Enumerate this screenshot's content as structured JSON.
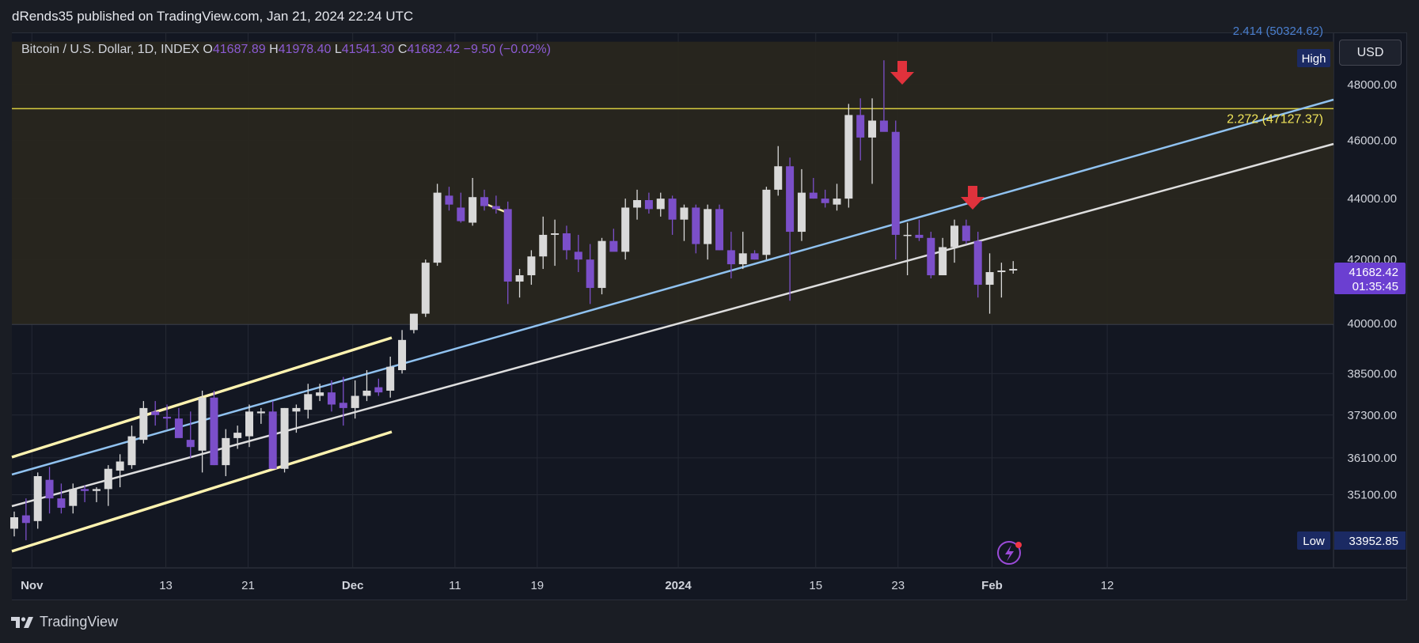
{
  "header": {
    "published_text": "dRends35 published on TradingView.com, Jan 21, 2024 22:24 UTC"
  },
  "legend": {
    "symbol": "Bitcoin / U.S. Dollar, 1D, INDEX",
    "o_label": "O",
    "o": "41687.89",
    "h_label": "H",
    "h": "41978.40",
    "l_label": "L",
    "l": "41541.30",
    "c_label": "C",
    "c": "41682.42",
    "change": "−9.50 (−0.02%)"
  },
  "toolbar": {
    "currency": "USD"
  },
  "footer": {
    "brand": "TradingView"
  },
  "colors": {
    "bg": "#131722",
    "up": "#d9d9d9",
    "down": "#7b4fc9",
    "channel": "#fff3b0",
    "blue": "#90c2f0",
    "white": "#dedede",
    "fib": "#f0e45a",
    "arrow": "#e0323c",
    "zone": "#2a2820"
  },
  "chart_data": {
    "type": "candlestick",
    "title": "Bitcoin / U.S. Dollar, 1D, INDEX",
    "x_ticks": [
      "Nov",
      "13",
      "21",
      "Dec",
      "11",
      "19",
      "2024",
      "15",
      "23",
      "Feb",
      "12"
    ],
    "y_ticks": [
      "48000.00",
      "46000.00",
      "44000.00",
      "42000.00",
      "40000.00",
      "38500.00",
      "37300.00",
      "36100.00",
      "35100.00"
    ],
    "price_label": {
      "price": "41682.42",
      "countdown": "01:35:45"
    },
    "high_label": {
      "tag": "High",
      "value": ""
    },
    "low_label": {
      "tag": "Low",
      "value": "33952.85"
    },
    "fib_label": "2.272 (47127.37)",
    "top_cut_label": "2.414 (50324.62)",
    "candles": [
      [
        34200,
        34650,
        34000,
        34500
      ],
      [
        34550,
        35000,
        33900,
        34350
      ],
      [
        34400,
        35700,
        34200,
        35600
      ],
      [
        35500,
        35850,
        34600,
        35000
      ],
      [
        35000,
        35400,
        34600,
        34750
      ],
      [
        34800,
        35400,
        34600,
        35250
      ],
      [
        35250,
        35350,
        34900,
        35200
      ],
      [
        35200,
        35300,
        34900,
        35250
      ],
      [
        35250,
        35900,
        34800,
        35800
      ],
      [
        35750,
        36200,
        35300,
        36000
      ],
      [
        35900,
        37000,
        35800,
        36700
      ],
      [
        36600,
        37700,
        36500,
        37500
      ],
      [
        37400,
        37700,
        37000,
        37300
      ],
      [
        37250,
        37600,
        36900,
        37200
      ],
      [
        37200,
        37500,
        36700,
        36650
      ],
      [
        36600,
        37400,
        36100,
        36400
      ],
      [
        36300,
        38000,
        35700,
        37800
      ],
      [
        37800,
        38000,
        35900,
        35900
      ],
      [
        35900,
        36900,
        35600,
        36650
      ],
      [
        36650,
        37000,
        36350,
        36800
      ],
      [
        36700,
        37600,
        36400,
        37400
      ],
      [
        37350,
        37500,
        37050,
        37400
      ],
      [
        37400,
        37700,
        35800,
        35800
      ],
      [
        35800,
        37500,
        35700,
        37500
      ],
      [
        37400,
        37600,
        36800,
        37500
      ],
      [
        37450,
        38200,
        37200,
        37900
      ],
      [
        37850,
        38200,
        37700,
        37950
      ],
      [
        37950,
        38300,
        37400,
        37600
      ],
      [
        37650,
        38400,
        37000,
        37500
      ],
      [
        37500,
        38300,
        37200,
        37850
      ],
      [
        37850,
        38600,
        37700,
        38000
      ],
      [
        38100,
        38350,
        37850,
        37950
      ],
      [
        38000,
        39000,
        37800,
        38700
      ],
      [
        38600,
        39800,
        38500,
        39500
      ],
      [
        39800,
        40300,
        39700,
        40300
      ],
      [
        40300,
        42000,
        40200,
        41900
      ],
      [
        41900,
        44500,
        41800,
        44200
      ],
      [
        44100,
        44400,
        43600,
        43800
      ],
      [
        43700,
        44200,
        43200,
        43250
      ],
      [
        43200,
        44700,
        43100,
        44050
      ],
      [
        44050,
        44300,
        43600,
        43750
      ],
      [
        43750,
        44100,
        43500,
        43650
      ],
      [
        43650,
        43900,
        40600,
        41300
      ],
      [
        41300,
        41700,
        40800,
        41500
      ],
      [
        41500,
        42300,
        41200,
        42100
      ],
      [
        42100,
        43400,
        41700,
        42800
      ],
      [
        42800,
        43300,
        41800,
        42850
      ],
      [
        42850,
        43100,
        42000,
        42300
      ],
      [
        42250,
        42800,
        41600,
        42000
      ],
      [
        42000,
        42500,
        40600,
        41100
      ],
      [
        41100,
        42700,
        40900,
        42600
      ],
      [
        42600,
        43000,
        42300,
        42250
      ],
      [
        42250,
        44000,
        42000,
        43700
      ],
      [
        43700,
        44300,
        43300,
        43950
      ],
      [
        43950,
        44200,
        43500,
        43650
      ],
      [
        43650,
        44200,
        43400,
        44000
      ],
      [
        44000,
        44100,
        42800,
        43300
      ],
      [
        43300,
        43800,
        42600,
        43700
      ],
      [
        43700,
        43800,
        42200,
        42500
      ],
      [
        42500,
        43800,
        42000,
        43650
      ],
      [
        43650,
        43800,
        42300,
        42300
      ],
      [
        42300,
        42900,
        41400,
        41850
      ],
      [
        41850,
        42900,
        41700,
        42200
      ],
      [
        42200,
        42300,
        42000,
        42000
      ],
      [
        42150,
        44400,
        42000,
        44300
      ],
      [
        44300,
        45800,
        44100,
        45100
      ],
      [
        45100,
        45400,
        40700,
        42900
      ],
      [
        42900,
        45000,
        42600,
        44200
      ],
      [
        44200,
        44700,
        44000,
        44000
      ],
      [
        44000,
        44300,
        43700,
        43850
      ],
      [
        43800,
        44500,
        43600,
        44000
      ],
      [
        44000,
        47300,
        43700,
        46900
      ],
      [
        46900,
        47500,
        45300,
        46100
      ],
      [
        46100,
        47500,
        44500,
        46700
      ],
      [
        46700,
        48900,
        46400,
        46300
      ],
      [
        46300,
        46700,
        42000,
        42800
      ],
      [
        42800,
        43200,
        41500,
        42800
      ],
      [
        42800,
        43300,
        42600,
        42700
      ],
      [
        42700,
        42900,
        41400,
        41500
      ],
      [
        41500,
        42700,
        41500,
        42400
      ],
      [
        42400,
        43300,
        41900,
        43100
      ],
      [
        43100,
        43300,
        42500,
        42600
      ],
      [
        42600,
        42900,
        40800,
        41200
      ],
      [
        41200,
        42200,
        40300,
        41600
      ],
      [
        41600,
        41900,
        40800,
        41650
      ],
      [
        41650,
        41950,
        41550,
        41700
      ]
    ],
    "trendlines": [
      {
        "name": "channel-upper",
        "color": "yellow"
      },
      {
        "name": "channel-lower",
        "color": "yellow"
      },
      {
        "name": "blue-support",
        "color": "blue"
      },
      {
        "name": "white-support",
        "color": "white"
      },
      {
        "name": "fib-level",
        "value": 47127.37
      }
    ],
    "ylim": [
      33600,
      49600
    ]
  }
}
